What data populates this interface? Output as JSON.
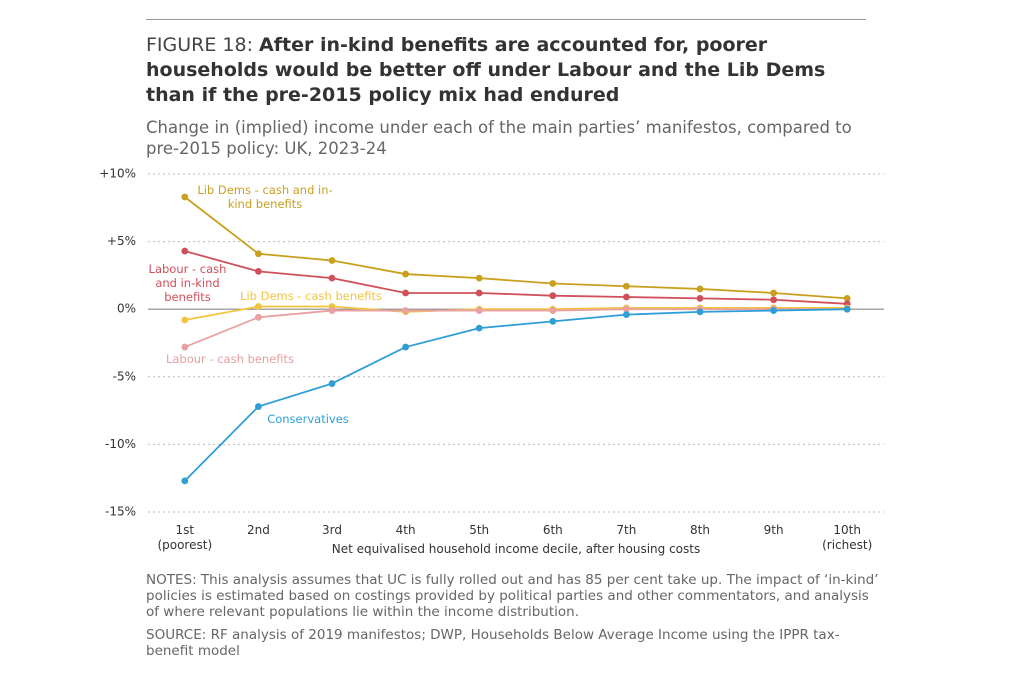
{
  "chart_data": {
    "type": "line",
    "title_prefix": "FIGURE 18:",
    "title": "After in-kind benefits are accounted for, poorer households would be better off under Labour and the Lib Dems than if the pre-2015 policy mix had endured",
    "subtitle": "Change in (implied) income under each of the main parties’ manifestos, compared to pre-2015 policy: UK, 2023-24",
    "x_label": "Net equivalised household income decile, after housing costs",
    "categories": [
      "1st (poorest)",
      "2nd",
      "3rd",
      "4th",
      "5th",
      "6th",
      "7th",
      "8th",
      "9th",
      "10th (richest)"
    ],
    "ylim": [
      -15,
      10
    ],
    "yticks": [
      {
        "value": 10,
        "label": "+10%"
      },
      {
        "value": 5,
        "label": "+5%"
      },
      {
        "value": 0,
        "label": "0%"
      },
      {
        "value": -5,
        "label": "-5%"
      },
      {
        "value": -10,
        "label": "-10%"
      },
      {
        "value": -15,
        "label": "-15%"
      }
    ],
    "grid": true,
    "series": [
      {
        "name": "Lib Dems - cash and in-kind benefits",
        "color": "#c9a01e",
        "values": [
          8.3,
          4.1,
          3.6,
          2.6,
          2.3,
          1.9,
          1.7,
          1.5,
          1.2,
          0.8
        ]
      },
      {
        "name": "Labour - cash and in-kind benefits",
        "color": "#d0505a",
        "values": [
          4.3,
          2.8,
          2.3,
          1.2,
          1.2,
          1.0,
          0.9,
          0.8,
          0.7,
          0.4
        ]
      },
      {
        "name": "Lib Dems - cash benefits",
        "color": "#f2c440",
        "values": [
          -0.8,
          0.2,
          0.2,
          -0.2,
          0.0,
          0.0,
          0.1,
          0.1,
          0.1,
          0.1
        ]
      },
      {
        "name": "Labour - cash benefits",
        "color": "#e8a0a0",
        "values": [
          -2.8,
          -0.6,
          -0.1,
          -0.1,
          -0.1,
          -0.1,
          0.0,
          0.0,
          0.0,
          0.0
        ]
      },
      {
        "name": "Conservatives",
        "color": "#2f9dd6",
        "values": [
          -12.7,
          -7.2,
          -5.5,
          -2.8,
          -1.4,
          -0.9,
          -0.4,
          -0.2,
          -0.1,
          0.0
        ]
      }
    ],
    "notes": "NOTES: This analysis assumes that UC is fully rolled out and has 85 per cent take up. The impact of ‘in-kind’ policies is estimated based on costings provided by political parties and other commentators, and analysis of where relevant populations lie within the income distribution.",
    "source": "SOURCE: RF analysis of 2019 manifestos; DWP, Households Below Average Income using the IPPR tax-benefit model"
  }
}
